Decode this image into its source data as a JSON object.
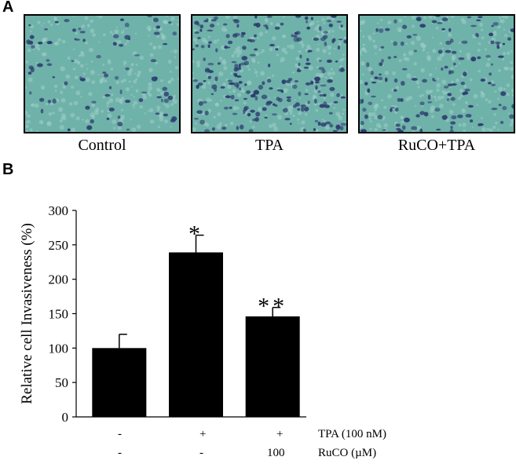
{
  "panel_a": {
    "letter": "A",
    "images": [
      {
        "label": "Control",
        "cell_density": 0.35
      },
      {
        "label": "TPA",
        "cell_density": 1.0
      },
      {
        "label": "RuCO+TPA",
        "cell_density": 0.6
      }
    ]
  },
  "panel_b": {
    "letter": "B"
  },
  "chart_data": {
    "type": "bar",
    "categories": [
      "Control",
      "TPA",
      "RuCO+TPA"
    ],
    "values": [
      100,
      239,
      146
    ],
    "errors": [
      20,
      25,
      13
    ],
    "significance": [
      "",
      "*",
      "**"
    ],
    "ylabel": "Relative cell Invasiveness (%)",
    "ylim": [
      0,
      300
    ],
    "yticks": [
      0,
      50,
      100,
      150,
      200,
      250,
      300
    ],
    "bar_color": "#000000",
    "conditions": [
      {
        "label": "TPA (100 nM)",
        "values": [
          "-",
          "+",
          "+"
        ]
      },
      {
        "label": "RuCO (µM)",
        "values": [
          "-",
          "-",
          "100"
        ]
      }
    ]
  },
  "colors": {
    "micro_background": "#6fb2aa",
    "micro_texture": "#9fd0c6",
    "cell_stain": "#2c3a6e"
  }
}
